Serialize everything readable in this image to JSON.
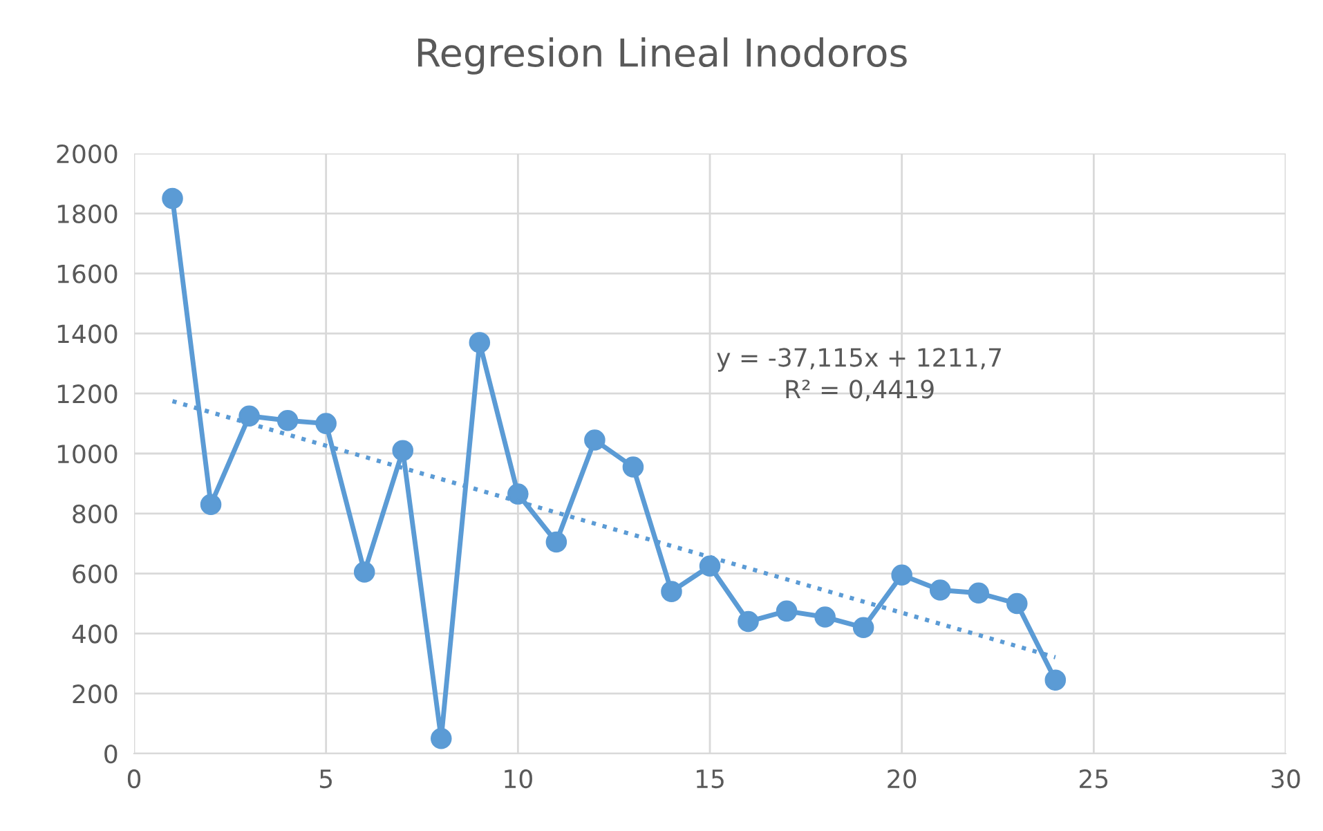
{
  "chart_data": {
    "type": "line",
    "title": "Regresion Lineal Inodoros",
    "x": [
      1,
      2,
      3,
      4,
      5,
      6,
      7,
      8,
      9,
      10,
      11,
      12,
      13,
      14,
      15,
      16,
      17,
      18,
      19,
      20,
      21,
      22,
      23,
      24
    ],
    "series": [
      {
        "color": "#5b9bd5",
        "marker": "circle",
        "line_style": "solid",
        "values": [
          1850,
          830,
          1125,
          1110,
          1100,
          605,
          1010,
          50,
          1370,
          865,
          705,
          1045,
          955,
          540,
          625,
          440,
          475,
          455,
          420,
          595,
          545,
          535,
          500,
          245
        ]
      },
      {
        "type": "line",
        "color": "#5b9bd5",
        "marker": "none",
        "line_style": "dotted",
        "x": [
          1,
          24
        ],
        "values": [
          1174.6,
          320.9
        ]
      }
    ],
    "annotations": [
      "y = -37,115x + 1211,7\nR² = 0,4419"
    ],
    "xlim": [
      0,
      30
    ],
    "xticks": [
      0,
      5,
      10,
      15,
      20,
      25,
      30
    ],
    "ylim": [
      0,
      2000
    ],
    "yticks": [
      0,
      200,
      400,
      600,
      800,
      1000,
      1200,
      1400,
      1600,
      1800,
      2000
    ],
    "grid": true,
    "legend": false
  }
}
